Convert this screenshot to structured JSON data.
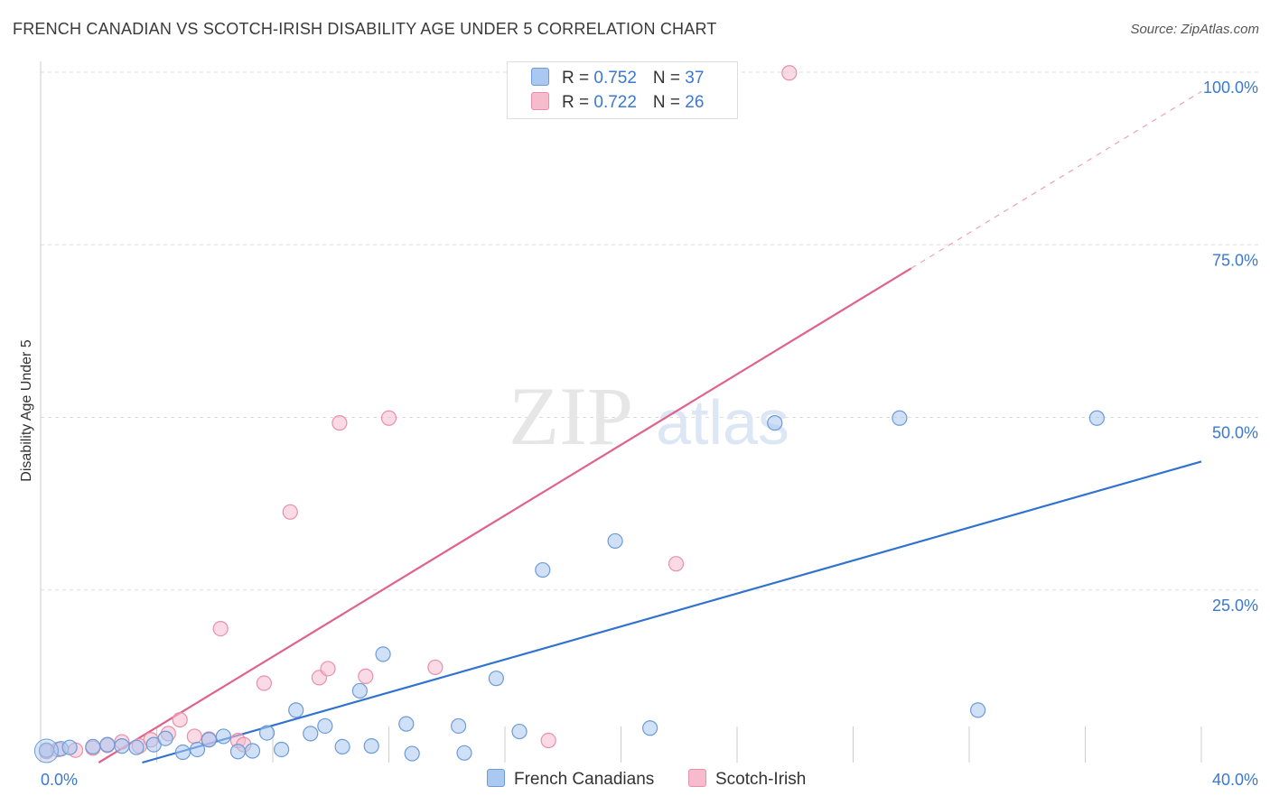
{
  "title": "FRENCH CANADIAN VS SCOTCH-IRISH DISABILITY AGE UNDER 5 CORRELATION CHART",
  "source": "Source: ZipAtlas.com",
  "watermark": {
    "zip": "ZIP",
    "atlas": "atlas"
  },
  "colors": {
    "blue_fill": "#aac8f0",
    "blue_stroke": "#6c9bd8",
    "blue_line": "#2f72d0",
    "pink_fill": "#f6bccd",
    "pink_stroke": "#e890aa",
    "pink_line": "#e0628c",
    "axis_label": "#3b78d0",
    "grid": "#dddddd"
  },
  "legend": {
    "rows": [
      {
        "r_label": "R = ",
        "r_value": "0.752",
        "n_label": "N = ",
        "n_value": "37"
      },
      {
        "r_label": "R = ",
        "r_value": "0.722",
        "n_label": "N = ",
        "n_value": "26"
      }
    ]
  },
  "bottom_legend": [
    "French Canadians",
    "Scotch-Irish"
  ],
  "chart_data": {
    "type": "scatter",
    "title": "FRENCH CANADIAN VS SCOTCH-IRISH DISABILITY AGE UNDER 5 CORRELATION CHART",
    "xlabel": "",
    "ylabel": "Disability Age Under 5",
    "xlim": [
      0,
      40
    ],
    "ylim": [
      0,
      100
    ],
    "x_tick_labels": [
      "0.0%",
      "40.0%"
    ],
    "y_ticks": [
      25,
      50,
      75,
      100
    ],
    "y_tick_labels": [
      "25.0%",
      "50.0%",
      "75.0%",
      "100.0%"
    ],
    "series": [
      {
        "name": "French Canadians",
        "R": 0.752,
        "N": 37,
        "trend": {
          "x0": 3.5,
          "y0": 0,
          "x1": 40,
          "y1": 43.6
        },
        "points": [
          [
            0.2,
            1.8
          ],
          [
            0.7,
            2.0
          ],
          [
            1.0,
            2.2
          ],
          [
            1.8,
            2.3
          ],
          [
            2.3,
            2.6
          ],
          [
            2.8,
            2.4
          ],
          [
            3.3,
            2.2
          ],
          [
            3.9,
            2.6
          ],
          [
            4.3,
            3.5
          ],
          [
            4.9,
            1.5
          ],
          [
            5.4,
            1.9
          ],
          [
            5.8,
            3.3
          ],
          [
            6.3,
            3.8
          ],
          [
            6.8,
            1.6
          ],
          [
            7.3,
            1.7
          ],
          [
            7.8,
            4.3
          ],
          [
            8.3,
            1.9
          ],
          [
            8.8,
            7.6
          ],
          [
            9.3,
            4.2
          ],
          [
            9.8,
            5.3
          ],
          [
            10.4,
            2.3
          ],
          [
            11.0,
            10.4
          ],
          [
            11.4,
            2.4
          ],
          [
            11.8,
            15.7
          ],
          [
            12.6,
            5.6
          ],
          [
            12.8,
            1.3
          ],
          [
            14.4,
            5.3
          ],
          [
            14.6,
            1.4
          ],
          [
            15.7,
            12.2
          ],
          [
            16.5,
            4.5
          ],
          [
            17.3,
            27.9
          ],
          [
            19.8,
            32.1
          ],
          [
            21.0,
            5.0
          ],
          [
            25.3,
            49.2
          ],
          [
            29.6,
            49.9
          ],
          [
            32.3,
            7.6
          ],
          [
            36.4,
            49.9
          ]
        ]
      },
      {
        "name": "Scotch-Irish",
        "R": 0.722,
        "N": 26,
        "trend": {
          "x0": 2.0,
          "y0": 0,
          "x1": 30.0,
          "y1": 71.6,
          "dash_x1": 40,
          "dash_y1": 97.2
        },
        "points": [
          [
            0.2,
            1.6
          ],
          [
            0.6,
            1.9
          ],
          [
            1.2,
            1.8
          ],
          [
            1.8,
            2.1
          ],
          [
            2.3,
            2.5
          ],
          [
            2.8,
            3.0
          ],
          [
            3.4,
            2.4
          ],
          [
            3.8,
            3.3
          ],
          [
            4.4,
            4.2
          ],
          [
            4.8,
            6.2
          ],
          [
            5.3,
            3.8
          ],
          [
            5.8,
            3.4
          ],
          [
            6.2,
            19.4
          ],
          [
            6.8,
            3.2
          ],
          [
            7.0,
            2.6
          ],
          [
            7.7,
            11.5
          ],
          [
            8.6,
            36.3
          ],
          [
            9.6,
            12.3
          ],
          [
            9.9,
            13.6
          ],
          [
            10.3,
            49.2
          ],
          [
            11.2,
            12.5
          ],
          [
            12.0,
            49.9
          ],
          [
            13.6,
            13.8
          ],
          [
            17.5,
            3.2
          ],
          [
            21.9,
            28.8
          ],
          [
            25.8,
            99.9
          ]
        ]
      }
    ]
  }
}
